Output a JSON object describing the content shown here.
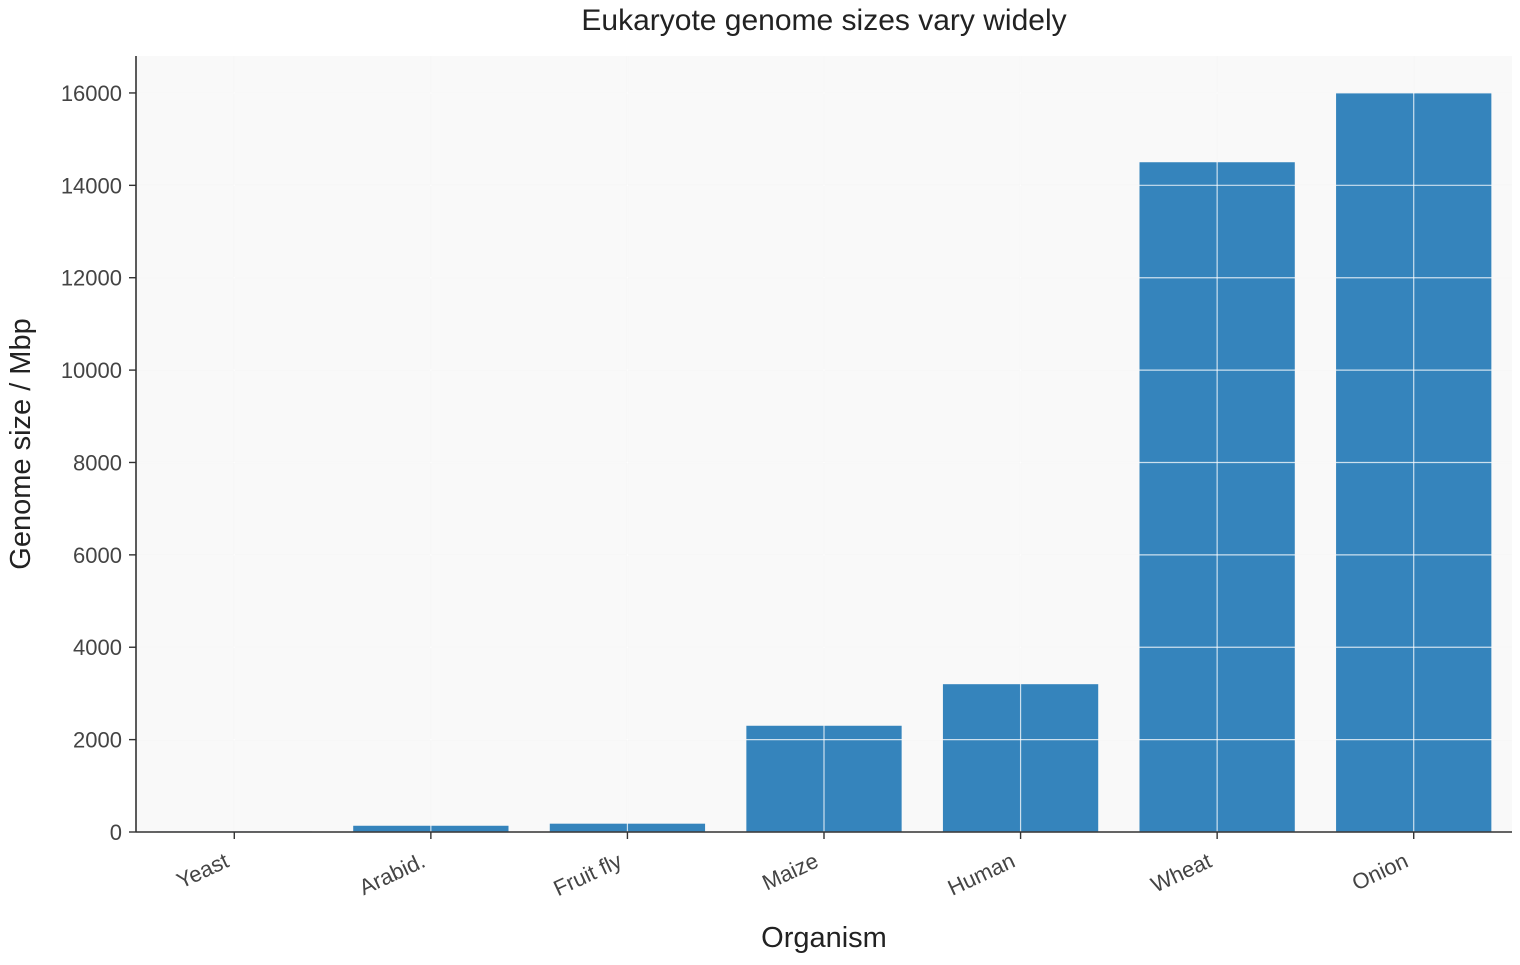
{
  "chart_data": {
    "type": "bar",
    "title": "Eukaryote genome sizes vary widely",
    "xlabel": "Organism",
    "ylabel": "Genome size / Mbp",
    "categories": [
      "Yeast",
      "Arabid.",
      "Fruit fly",
      "Maize",
      "Human",
      "Wheat",
      "Onion"
    ],
    "values": [
      12,
      135,
      180,
      2300,
      3200,
      14500,
      16000
    ],
    "ylim": [
      0,
      16800
    ],
    "yticks": [
      0,
      2000,
      4000,
      6000,
      8000,
      10000,
      12000,
      14000,
      16000
    ],
    "grid": true,
    "bar_color": "#3584bc",
    "plot_background": "#f9f9f9"
  }
}
